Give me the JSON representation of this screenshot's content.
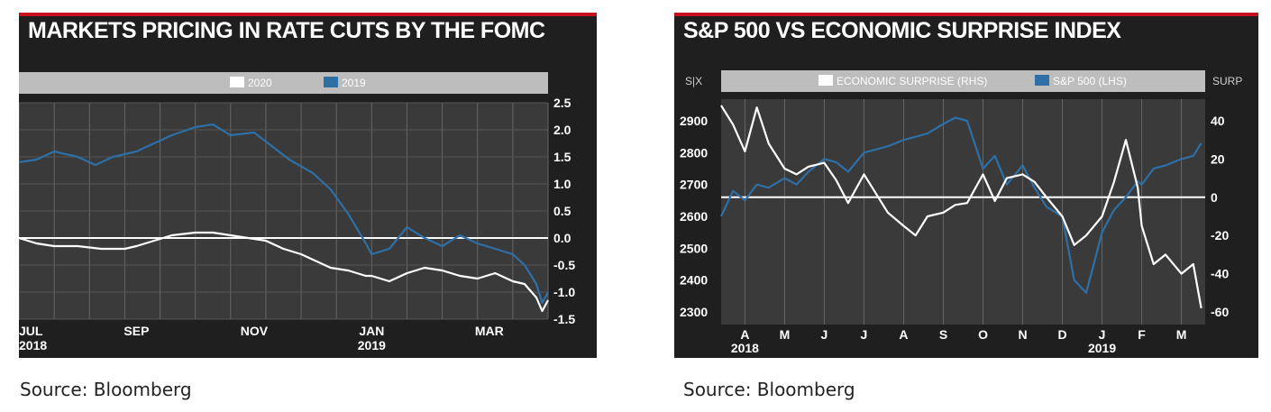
{
  "colors": {
    "panel_bg": "#1f1f1f",
    "plot_bg": "#3a3a3a",
    "legend_bar": "#bdbdbd",
    "accent_red": "#c8101e",
    "white_series": "#ffffff",
    "blue_series": "#2e6fa6"
  },
  "chart_data": [
    {
      "type": "line",
      "title": "MARKETS PRICING IN RATE CUTS BY THE FOMC",
      "source": "Source: Bloomberg",
      "x_axis": {
        "ticks": [
          {
            "x": 0,
            "line1": "JUL",
            "line2": "2018"
          },
          {
            "x": 2,
            "line1": "SEP",
            "line2": ""
          },
          {
            "x": 4,
            "line1": "NOV",
            "line2": ""
          },
          {
            "x": 6,
            "line1": "JAN",
            "line2": "2019"
          },
          {
            "x": 8,
            "line1": "MAR",
            "line2": ""
          }
        ],
        "range": [
          0,
          9
        ]
      },
      "y_axis": {
        "ticks": [
          "2.5",
          "2.0",
          "1.5",
          "1.0",
          "0.5",
          "0.0",
          "-0.5",
          "-1.0",
          "-1.5"
        ],
        "range": [
          -1.5,
          2.5
        ],
        "position": "right"
      },
      "legend": {
        "position": "top",
        "entries": [
          "2020",
          "2019"
        ]
      },
      "reference_line": 0,
      "series": [
        {
          "name": "2020",
          "color": "#ffffff",
          "x": [
            0,
            0.3,
            0.6,
            1,
            1.4,
            1.8,
            2,
            2.3,
            2.6,
            3,
            3.3,
            3.6,
            3.9,
            4.2,
            4.5,
            4.8,
            5,
            5.3,
            5.6,
            5.9,
            6,
            6.3,
            6.6,
            6.9,
            7.2,
            7.5,
            7.8,
            8.1,
            8.4,
            8.6,
            8.8,
            8.9,
            9
          ],
          "y": [
            0,
            -0.1,
            -0.15,
            -0.15,
            -0.2,
            -0.2,
            -0.15,
            -0.05,
            0.05,
            0.1,
            0.1,
            0.05,
            0,
            -0.05,
            -0.2,
            -0.3,
            -0.4,
            -0.55,
            -0.6,
            -0.7,
            -0.7,
            -0.8,
            -0.65,
            -0.55,
            -0.6,
            -0.7,
            -0.75,
            -0.65,
            -0.8,
            -0.85,
            -1.1,
            -1.35,
            -1.15
          ]
        },
        {
          "name": "2019",
          "color": "#2e6fa6",
          "x": [
            0,
            0.3,
            0.6,
            1,
            1.3,
            1.6,
            2,
            2.3,
            2.6,
            3,
            3.3,
            3.6,
            4,
            4.3,
            4.6,
            5,
            5.3,
            5.6,
            5.9,
            6,
            6.3,
            6.6,
            6.9,
            7.2,
            7.5,
            7.8,
            8.1,
            8.4,
            8.6,
            8.8,
            8.9,
            9
          ],
          "y": [
            1.4,
            1.45,
            1.6,
            1.5,
            1.35,
            1.5,
            1.6,
            1.75,
            1.9,
            2.05,
            2.1,
            1.9,
            1.95,
            1.7,
            1.45,
            1.2,
            0.9,
            0.45,
            -0.1,
            -0.3,
            -0.2,
            0.2,
            0,
            -0.15,
            0.05,
            -0.1,
            -0.2,
            -0.3,
            -0.5,
            -0.85,
            -1.2,
            -1.0
          ]
        }
      ]
    },
    {
      "type": "line",
      "title": "S&P 500 VS ECONOMIC SURPRISE INDEX",
      "source": "Source: Bloomberg",
      "left_axis_label": "S|X",
      "right_axis_label": "SURP",
      "x_axis": {
        "ticks": [
          {
            "x": 1,
            "line1": "A",
            "line2": "2018"
          },
          {
            "x": 2,
            "line1": "M",
            "line2": ""
          },
          {
            "x": 3,
            "line1": "J",
            "line2": ""
          },
          {
            "x": 4,
            "line1": "J",
            "line2": ""
          },
          {
            "x": 5,
            "line1": "A",
            "line2": ""
          },
          {
            "x": 6,
            "line1": "S",
            "line2": ""
          },
          {
            "x": 7,
            "line1": "O",
            "line2": ""
          },
          {
            "x": 8,
            "line1": "N",
            "line2": ""
          },
          {
            "x": 9,
            "line1": "D",
            "line2": ""
          },
          {
            "x": 10,
            "line1": "J",
            "line2": "2019"
          },
          {
            "x": 11,
            "line1": "F",
            "line2": ""
          },
          {
            "x": 12,
            "line1": "M",
            "line2": ""
          }
        ],
        "range": [
          0.4,
          12.6
        ]
      },
      "y_axis_left": {
        "ticks": [
          "2900",
          "2800",
          "2700",
          "2600",
          "2500",
          "2400",
          "2300"
        ],
        "range": [
          2300,
          2900
        ]
      },
      "y_axis_right": {
        "ticks": [
          "40",
          "20",
          "0",
          "-20",
          "-40",
          "-60"
        ],
        "range": [
          -60,
          40
        ]
      },
      "legend": {
        "position": "top",
        "entries": [
          "ECONOMIC SURPRISE (RHS)",
          "S&P 500 (LHS)"
        ]
      },
      "reference_line_rhs": 0,
      "series": [
        {
          "name": "ECONOMIC SURPRISE (RHS)",
          "color": "#ffffff",
          "axis": "right",
          "x": [
            0.4,
            0.7,
            1,
            1.3,
            1.6,
            2,
            2.3,
            2.6,
            3,
            3.3,
            3.6,
            4,
            4.3,
            4.6,
            5,
            5.3,
            5.6,
            6,
            6.3,
            6.6,
            7,
            7.3,
            7.6,
            8,
            8.3,
            8.6,
            9,
            9.3,
            9.6,
            10,
            10.3,
            10.6,
            10.9,
            11,
            11.3,
            11.6,
            12,
            12.3,
            12.5
          ],
          "y": [
            48,
            38,
            24,
            47,
            28,
            15,
            12,
            16,
            18,
            9,
            -3,
            12,
            2,
            -8,
            -15,
            -20,
            -10,
            -8,
            -4,
            -3,
            12,
            -2,
            10,
            12,
            8,
            0,
            -10,
            -25,
            -20,
            -10,
            8,
            30,
            5,
            -15,
            -35,
            -30,
            -40,
            -35,
            -58
          ]
        },
        {
          "name": "S&P 500 (LHS)",
          "color": "#2e6fa6",
          "axis": "left",
          "x": [
            0.4,
            0.7,
            1,
            1.3,
            1.6,
            2,
            2.3,
            2.6,
            3,
            3.3,
            3.6,
            4,
            4.3,
            4.6,
            5,
            5.3,
            5.6,
            6,
            6.3,
            6.6,
            7,
            7.3,
            7.6,
            8,
            8.3,
            8.6,
            9,
            9.3,
            9.6,
            10,
            10.3,
            10.6,
            10.9,
            11,
            11.3,
            11.6,
            12,
            12.3,
            12.5
          ],
          "y": [
            2600,
            2680,
            2650,
            2700,
            2690,
            2720,
            2700,
            2740,
            2780,
            2770,
            2740,
            2800,
            2810,
            2820,
            2840,
            2850,
            2860,
            2890,
            2910,
            2900,
            2750,
            2790,
            2700,
            2760,
            2690,
            2630,
            2600,
            2400,
            2360,
            2550,
            2620,
            2660,
            2710,
            2700,
            2750,
            2760,
            2780,
            2790,
            2830
          ]
        }
      ]
    }
  ]
}
